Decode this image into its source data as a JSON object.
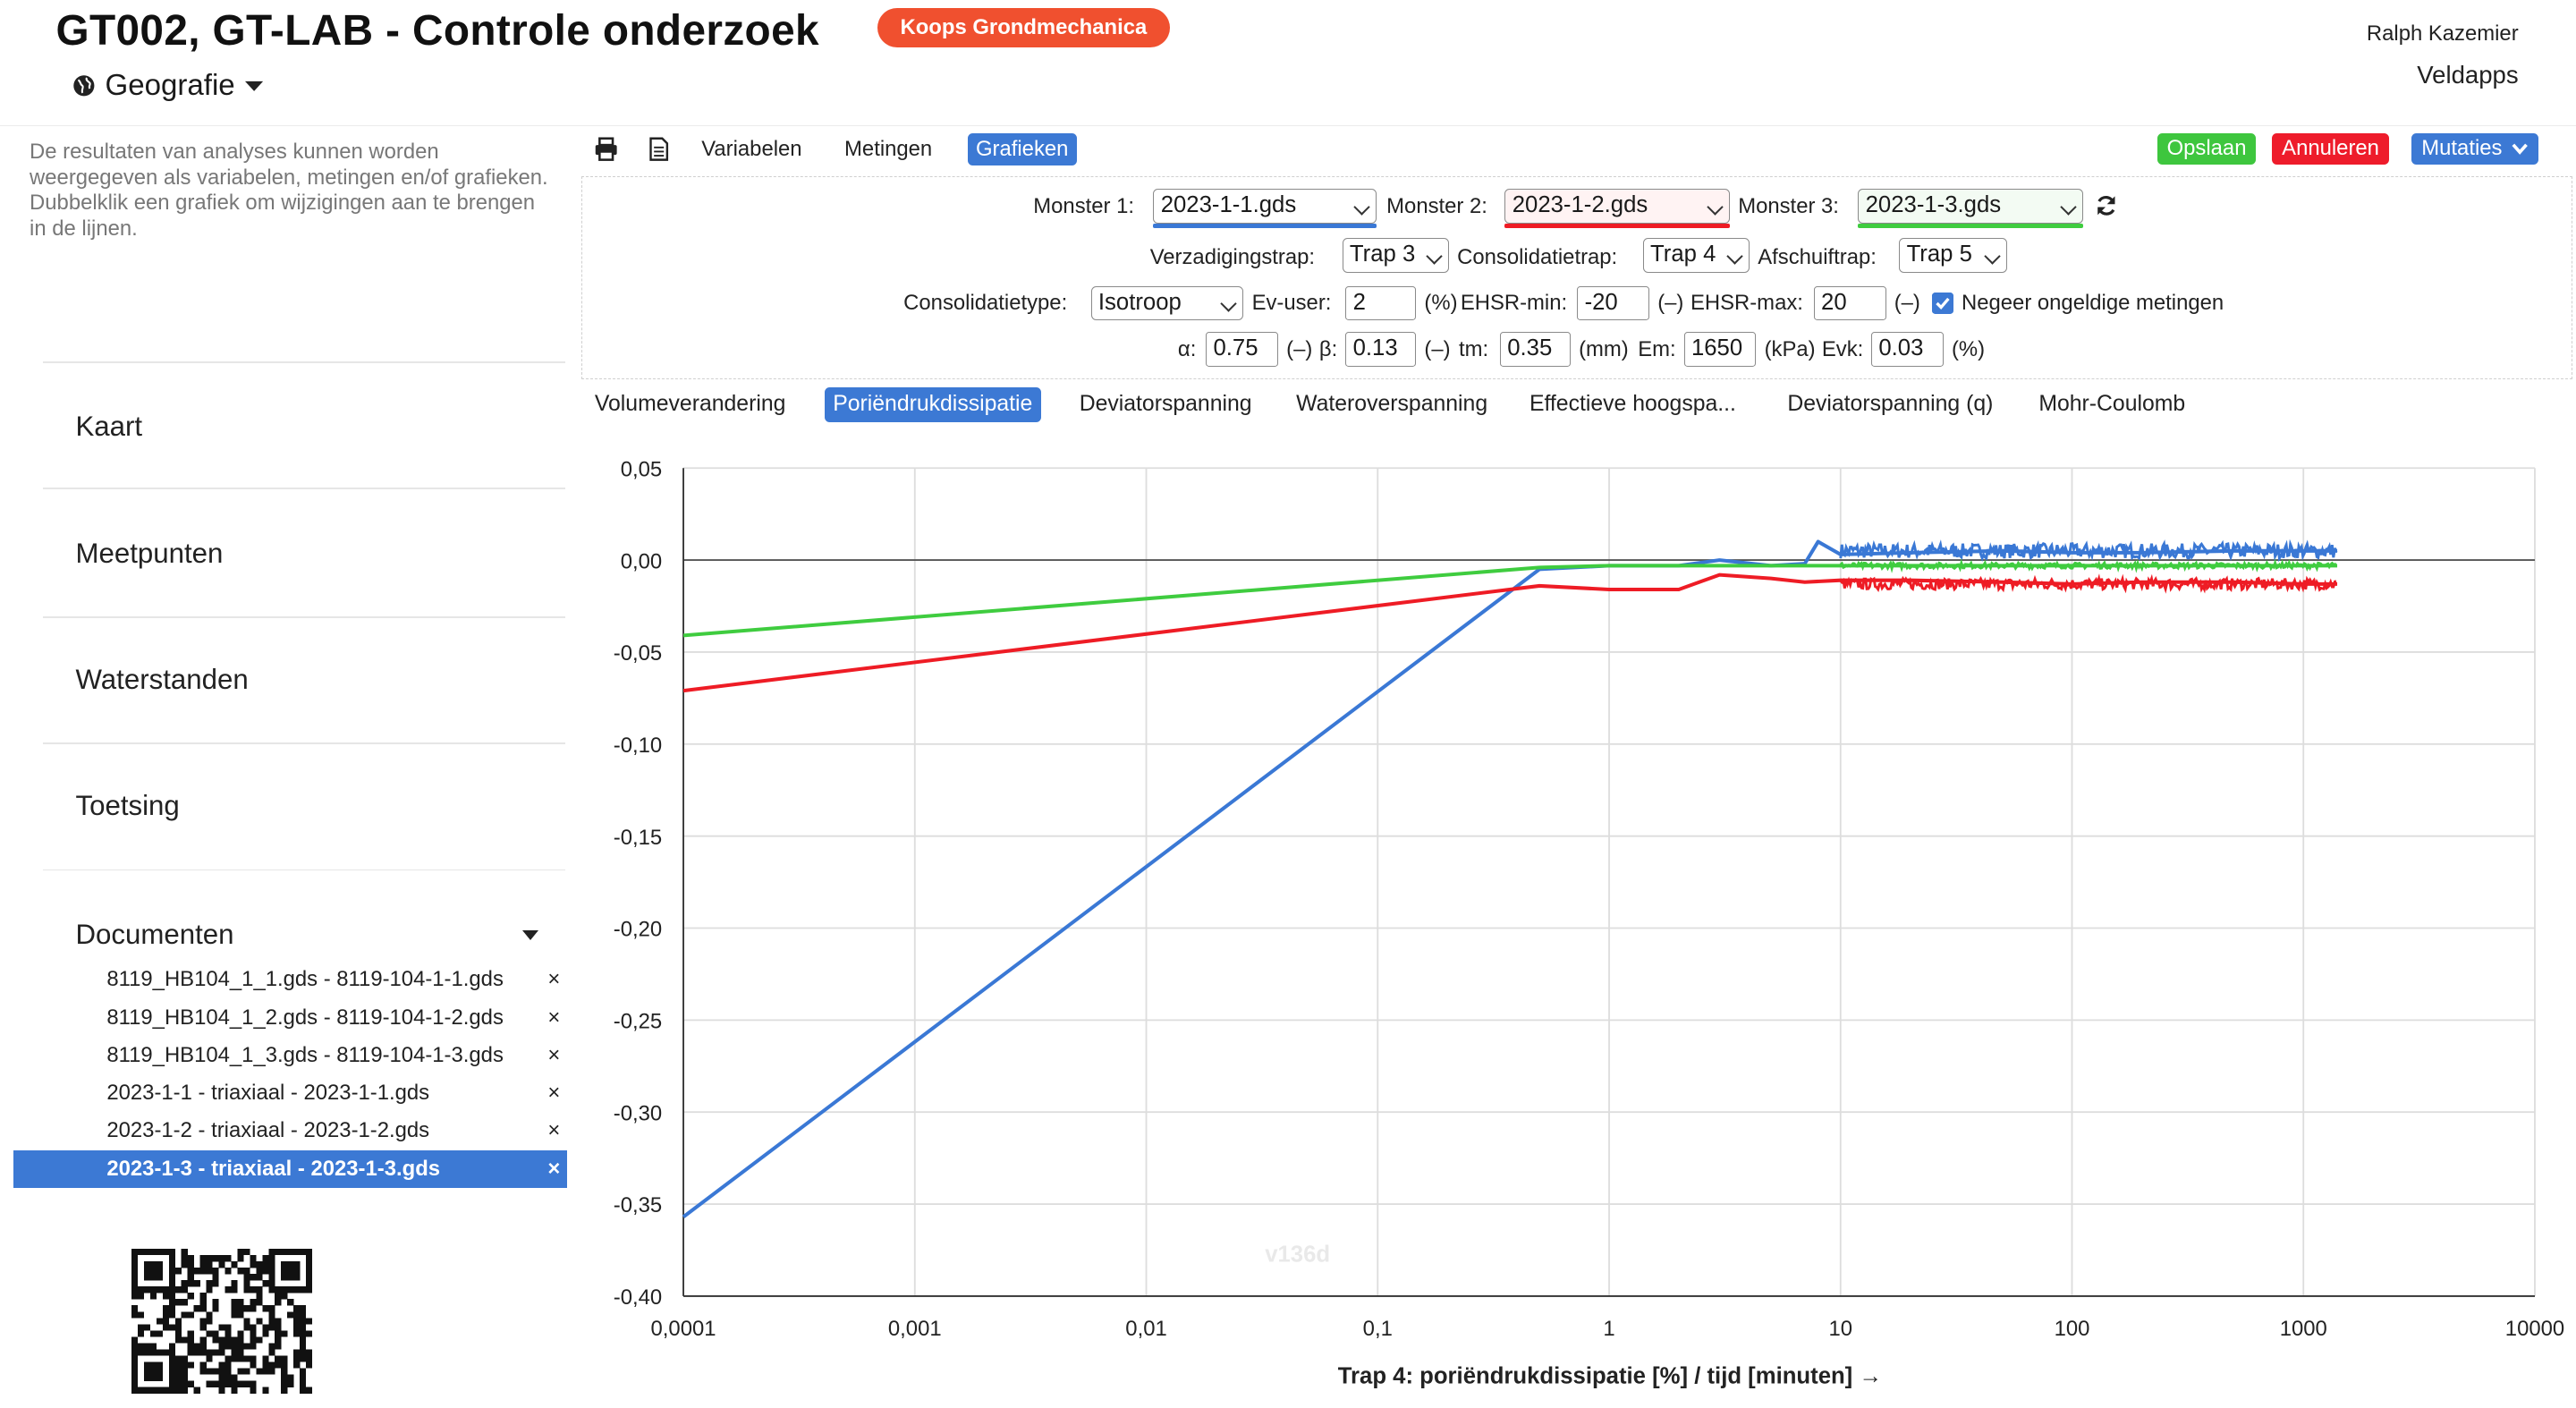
{
  "header": {
    "title": "GT002, GT-LAB - Controle onderzoek",
    "org_badge": "Koops Grondmechanica",
    "geo_label": "Geografie",
    "user": "Ralph Kazemier",
    "app": "Veldapps"
  },
  "sidebar": {
    "help_text": "De resultaten van analyses kunnen worden weergegeven als variabelen, metingen en/of grafieken. Dubbelklik een grafiek om wijzigingen aan te brengen in de lijnen.",
    "nav": [
      "Kaart",
      "Meetpunten",
      "Waterstanden",
      "Toetsing",
      "Documenten"
    ],
    "documents": [
      {
        "label": "8119_HB104_1_1.gds - 8119-104-1-1.gds",
        "remove": "×"
      },
      {
        "label": "8119_HB104_1_2.gds - 8119-104-1-2.gds",
        "remove": "×"
      },
      {
        "label": "8119_HB104_1_3.gds - 8119-104-1-3.gds",
        "remove": "×"
      },
      {
        "label": "2023-1-1 - triaxiaal - 2023-1-1.gds",
        "remove": "×"
      },
      {
        "label": "2023-1-2 - triaxiaal - 2023-1-2.gds",
        "remove": "×"
      },
      {
        "label": "2023-1-3 - triaxiaal - 2023-1-3.gds",
        "remove": "×",
        "selected": true
      }
    ]
  },
  "toolbar": {
    "tabs": [
      "Variabelen",
      "Metingen",
      "Grafieken"
    ],
    "active_tab": "Grafieken",
    "save": "Opslaan",
    "cancel": "Annuleren",
    "mutations": "Mutaties",
    "icons": [
      "print-icon",
      "document-icon"
    ]
  },
  "settings": {
    "monster1_label": "Monster 1:",
    "monster1": "2023-1-1.gds",
    "monster2_label": "Monster 2:",
    "monster2": "2023-1-2.gds",
    "monster3_label": "Monster 3:",
    "monster3": "2023-1-3.gds",
    "saturation_label": "Verzadigingstrap:",
    "saturation": "Trap 3",
    "consolidation_label": "Consolidatietrap:",
    "consolidation": "Trap 4",
    "shear_label": "Afschuiftrap:",
    "shear": "Trap 5",
    "consolidation_type_label": "Consolidatietype:",
    "consolidation_type": "Isotroop",
    "ev_user_label": "Ev-user:",
    "ev_user": "2",
    "ev_user_unit": "(%)",
    "ehsr_min_label": "EHSR-min:",
    "ehsr_min": "-20",
    "ehsr_min_unit": "(–)",
    "ehsr_max_label": "EHSR-max:",
    "ehsr_max": "20",
    "ehsr_max_unit": "(–)",
    "ignore_invalid_label": "Negeer ongeldige metingen",
    "ignore_invalid": true,
    "alpha_label": "α:",
    "alpha": "0.75",
    "alpha_unit": "(–)",
    "beta_label": "β:",
    "beta": "0.13",
    "beta_unit": "(–)",
    "tm_label": "tm:",
    "tm": "0.35",
    "tm_unit": "(mm)",
    "em_label": "Em:",
    "em": "1650",
    "em_unit": "(kPa)",
    "evk_label": "Evk:",
    "evk": "0.03",
    "evk_unit": "(%)"
  },
  "chart_tabs": [
    "Volumeverandering",
    "Poriëndrukdissipatie",
    "Deviatorspanning",
    "Wateroverspanning",
    "Effectieve hoogspa...",
    "Deviatorspanning (q)",
    "Mohr-Coulomb"
  ],
  "active_chart_tab": "Poriëndrukdissipatie",
  "colors": {
    "accent": "#3c79d4",
    "badge": "#f0502f",
    "save": "#3ec63e",
    "cancel": "#ee1c2b",
    "series1": "#3a78d5",
    "series2": "#ee1c25",
    "series3": "#3fcc3f"
  },
  "watermark": "v136d",
  "chart_data": {
    "type": "line",
    "x_scale": "log",
    "xlim": [
      0.0001,
      10000
    ],
    "ylim": [
      -0.4,
      0.05
    ],
    "x_ticks": [
      "0,0001",
      "0,001",
      "0,01",
      "0,1",
      "1",
      "10",
      "100",
      "1000",
      "10000"
    ],
    "y_ticks": [
      "0,05",
      "0,00",
      "-0,05",
      "-0,10",
      "-0,15",
      "-0,20",
      "-0,25",
      "-0,30",
      "-0,35",
      "-0,40"
    ],
    "xlabel": "Trap 4: poriëndrukdissipatie [%] / tijd [minuten] →",
    "ylabel": "",
    "grid": true,
    "series": [
      {
        "color": "#3a78d5",
        "x": [
          0.0001,
          0.5,
          1,
          2,
          3,
          5,
          7,
          8,
          10,
          20,
          50,
          100,
          200,
          500,
          1000,
          1400
        ],
        "y": [
          -0.357,
          -0.005,
          -0.003,
          -0.003,
          0.0,
          -0.003,
          -0.002,
          0.01,
          0.003,
          0.004,
          0.005,
          0.004,
          0.004,
          0.005,
          0.005,
          0.005
        ]
      },
      {
        "color": "#ee1c25",
        "x": [
          0.0001,
          0.5,
          1,
          2,
          3,
          5,
          7,
          10,
          20,
          50,
          100,
          200,
          500,
          1000,
          1400
        ],
        "y": [
          -0.071,
          -0.014,
          -0.016,
          -0.016,
          -0.008,
          -0.01,
          -0.012,
          -0.011,
          -0.011,
          -0.012,
          -0.013,
          -0.012,
          -0.012,
          -0.013,
          -0.013
        ]
      },
      {
        "color": "#3fcc3f",
        "x": [
          0.0001,
          0.5,
          1,
          2,
          3,
          5,
          7,
          10,
          20,
          50,
          100,
          200,
          500,
          1000,
          1400
        ],
        "y": [
          -0.041,
          -0.004,
          -0.003,
          -0.003,
          -0.003,
          -0.003,
          -0.003,
          -0.003,
          -0.003,
          -0.003,
          -0.003,
          -0.003,
          -0.003,
          -0.003,
          -0.003
        ]
      }
    ]
  }
}
